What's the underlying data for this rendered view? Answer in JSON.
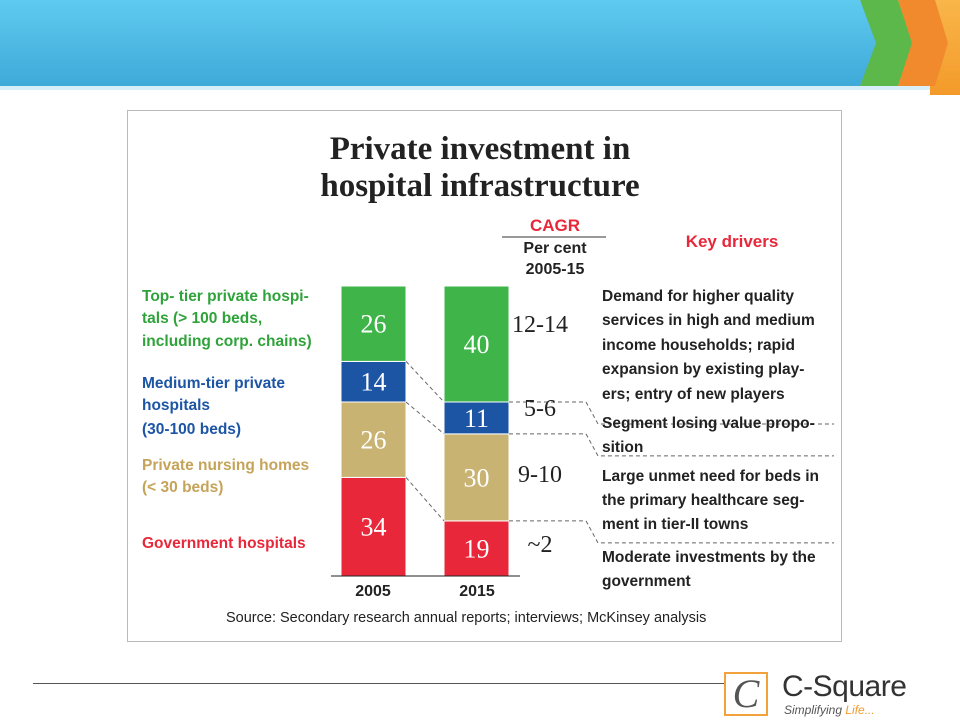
{
  "chart_data": {
    "type": "bar",
    "title": "Private investment in hospital infrastructure",
    "title_lines": [
      "Private investment in",
      "hospital infrastructure"
    ],
    "categories": [
      "2005",
      "2015"
    ],
    "stacked": true,
    "series": [
      {
        "name": "Government hospitals",
        "values": [
          34,
          19
        ],
        "color": "#e8283a",
        "cagr": "~2",
        "drivers": [
          "Moderate investments by the",
          "government"
        ]
      },
      {
        "name": "Private nursing homes (<30 beds)",
        "label_lines": [
          "Private nursing homes",
          "(< 30 beds)"
        ],
        "values": [
          26,
          30
        ],
        "color": "#c9b373",
        "label_color": "#c5a45a",
        "cagr": "9-10",
        "drivers": [
          "Large unmet need for beds in",
          "the primary healthcare seg-",
          "ment in tier-II towns"
        ]
      },
      {
        "name": "Medium-tier private hospitals (30-100 beds)",
        "label_lines": [
          "Medium-tier private",
          "hospitals",
          "(30-100 beds)"
        ],
        "values": [
          14,
          11
        ],
        "color": "#1d55a5",
        "label_color": "#1d55a5",
        "cagr": "5-6",
        "drivers": [
          "Segment losing value propo-",
          "sition"
        ]
      },
      {
        "name": "Top- tier private hospitals (>100 beds, including corp. chains)",
        "label_lines": [
          "Top- tier private hospi-",
          "tals (> 100 beds,",
          "including corp. chains)"
        ],
        "values": [
          26,
          40
        ],
        "color": "#3eb449",
        "label_color": "#2fa33a",
        "cagr": "12-14",
        "drivers": [
          "Demand for higher quality",
          "services in high and medium",
          "income households; rapid",
          "expansion by existing play-",
          "ers; entry of new players"
        ]
      }
    ],
    "ylim": [
      0,
      100
    ],
    "cagr_header": "CAGR",
    "cagr_sub_lines": [
      "Per cent",
      "2005-15"
    ],
    "drivers_header": "Key drivers",
    "source": "Source: Secondary research annual reports; interviews; McKinsey analysis"
  },
  "logo": {
    "name": "C-Square",
    "tagline": "Simplifying",
    "tagline_accent": "Life..."
  },
  "colors": {
    "banner_blue": "#4bbde6",
    "banner_green": "#5cb84a",
    "banner_orange": "#f08a2c",
    "side_orange": "#f7a93a"
  }
}
